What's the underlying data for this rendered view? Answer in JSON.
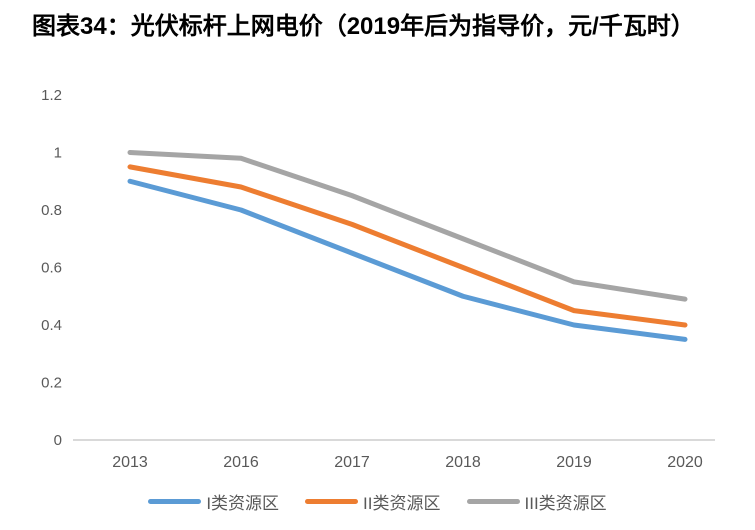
{
  "chart_data": {
    "type": "line",
    "title": "图表34：光伏标杆上网电价（2019年后为指导价，元/千瓦时）",
    "categories": [
      "2013",
      "2016",
      "2017",
      "2018",
      "2019",
      "2020"
    ],
    "series": [
      {
        "name": "I类资源区",
        "color": "#5B9BD5",
        "values": [
          0.9,
          0.8,
          0.65,
          0.5,
          0.4,
          0.35
        ]
      },
      {
        "name": "II类资源区",
        "color": "#ED7D31",
        "values": [
          0.95,
          0.88,
          0.75,
          0.6,
          0.45,
          0.4
        ]
      },
      {
        "name": "III类资源区",
        "color": "#A5A5A5",
        "values": [
          1.0,
          0.98,
          0.85,
          0.7,
          0.55,
          0.49
        ]
      }
    ],
    "y_ticks": [
      {
        "value": 0,
        "label": "0"
      },
      {
        "value": 0.2,
        "label": "0.2"
      },
      {
        "value": 0.4,
        "label": "0.4"
      },
      {
        "value": 0.6,
        "label": "0.6"
      },
      {
        "value": 0.8,
        "label": "0.8"
      },
      {
        "value": 1,
        "label": "1"
      },
      {
        "value": 1.2,
        "label": "1.2"
      }
    ],
    "ylim": [
      0,
      1.2
    ],
    "grid": false,
    "legend_position": "bottom",
    "axis_color": "#D9D9D9",
    "tick_label_color": "#595959"
  }
}
